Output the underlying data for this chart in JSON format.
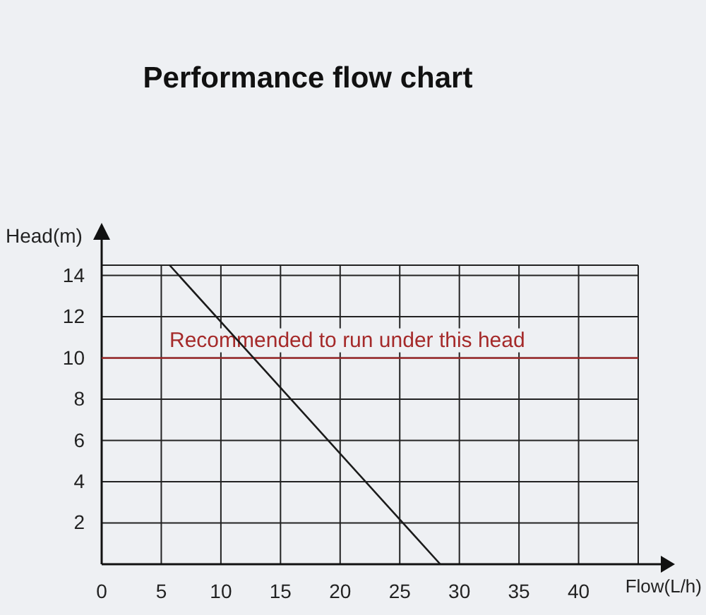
{
  "chart_data": {
    "type": "line",
    "title": "Performance flow chart",
    "xlabel": "Flow(L/h)",
    "ylabel": "Head(m)",
    "x": [
      5.7,
      28.4
    ],
    "series": [
      {
        "color": "#1a1a1a",
        "values": [
          14.5,
          0
        ]
      }
    ],
    "xlim": [
      0,
      45
    ],
    "ylim": [
      0,
      14.5
    ],
    "xticks": [
      0,
      5,
      10,
      15,
      20,
      25,
      30,
      35,
      40
    ],
    "yticks": [
      2,
      4,
      6,
      8,
      10,
      12,
      14
    ],
    "grid": true,
    "marker": "none",
    "line_style": "solid",
    "ref_lines": [
      {
        "axis": "y",
        "value": 10,
        "label": "Recommended to run under this head",
        "color": "#a52a2a"
      }
    ]
  }
}
